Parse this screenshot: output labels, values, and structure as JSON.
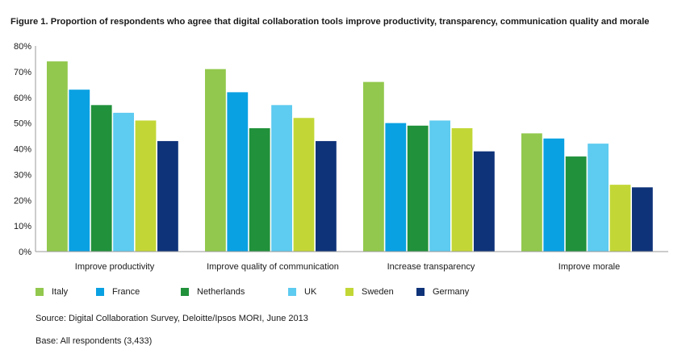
{
  "chart_data": {
    "type": "bar",
    "title": "Figure 1. Proportion of respondents who agree that digital collaboration tools improve productivity, transparency, communication quality and morale",
    "categories": [
      "Improve productivity",
      "Improve quality of communication",
      "Increase transparency",
      "Improve morale"
    ],
    "series": [
      {
        "name": "Italy",
        "color": "#92c84d",
        "values": [
          74,
          71,
          66,
          46
        ]
      },
      {
        "name": "France",
        "color": "#0aa1e2",
        "values": [
          63,
          62,
          50,
          44
        ]
      },
      {
        "name": "Netherlands",
        "color": "#21913b",
        "values": [
          57,
          48,
          49,
          37
        ]
      },
      {
        "name": "UK",
        "color": "#5ecbf0",
        "values": [
          54,
          57,
          51,
          42
        ]
      },
      {
        "name": "Sweden",
        "color": "#c2d736",
        "values": [
          51,
          52,
          48,
          26
        ]
      },
      {
        "name": "Germany",
        "color": "#0f3379",
        "values": [
          43,
          43,
          39,
          25
        ]
      }
    ],
    "ylim": [
      0,
      80
    ],
    "yticks": [
      "0%",
      "10%",
      "20%",
      "30%",
      "40%",
      "50%",
      "60%",
      "70%",
      "80%"
    ],
    "legend_position": "bottom-left",
    "grid": false
  },
  "footer": {
    "source": "Source: Digital Collaboration Survey, Deloitte/Ipsos MORI, June 2013",
    "base": "Base: All respondents (3,433)"
  }
}
